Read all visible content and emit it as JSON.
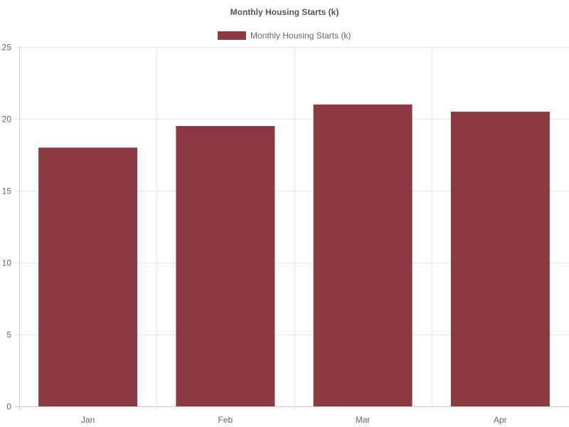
{
  "chart_data": {
    "type": "bar",
    "title": "Monthly Housing Starts (k)",
    "categories": [
      "Jan",
      "Feb",
      "Mar",
      "Apr"
    ],
    "series": [
      {
        "name": "Monthly Housing Starts (k)",
        "values": [
          18,
          19.5,
          21,
          20.5
        ],
        "color": "#8b3a42"
      }
    ],
    "ylim": [
      0,
      25
    ],
    "yticks": [
      "0",
      "5",
      "10",
      "15",
      "20",
      "25"
    ],
    "grid": true,
    "legend_position": "top-center"
  },
  "colors": {
    "grid": "#e6e6e6",
    "axis": "#c9c9c9",
    "text": "#666666",
    "bar": "#8b3a42"
  }
}
